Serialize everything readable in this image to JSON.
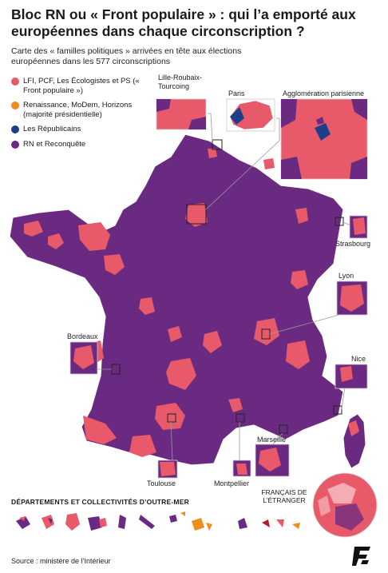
{
  "title": "Bloc RN ou « Front populaire » : qui l’a emporté aux européennes dans chaque circonscription ?",
  "subtitle": "Carte des « familles politiques » arrivées en tête aux élections européennes dans les 577 circonscriptions",
  "legend": [
    {
      "label": "LFI, PCF, Les Écologistes et PS (« Front populaire »)",
      "color": "#e85a6a"
    },
    {
      "label": "Renaissance, MoDem, Horizons (majorité présidentielle)",
      "color": "#f08c1e"
    },
    {
      "label": "Les Républicains",
      "color": "#1f3e8a"
    },
    {
      "label": "RN et Reconquête",
      "color": "#6b2a82"
    }
  ],
  "insets": {
    "lille": "Lille-Roubaix-Tourcoing",
    "paris": "Paris",
    "agglo": "Agglomération parisienne",
    "strasbourg": "Strasbourg",
    "lyon": "Lyon",
    "bordeaux": "Bordeaux",
    "nice": "Nice",
    "marseille": "Marseille",
    "toulouse": "Toulouse",
    "montpellier": "Montpellier"
  },
  "outre_mer_title": "DÉPARTEMENTS ET COLLECTIVITÉS D’OUTRE-MER",
  "etranger": "FRANÇAIS DE L’ÉTRANGER",
  "source": "Source : ministère de l’Intérieur",
  "logo": "le-figaro-logo"
}
